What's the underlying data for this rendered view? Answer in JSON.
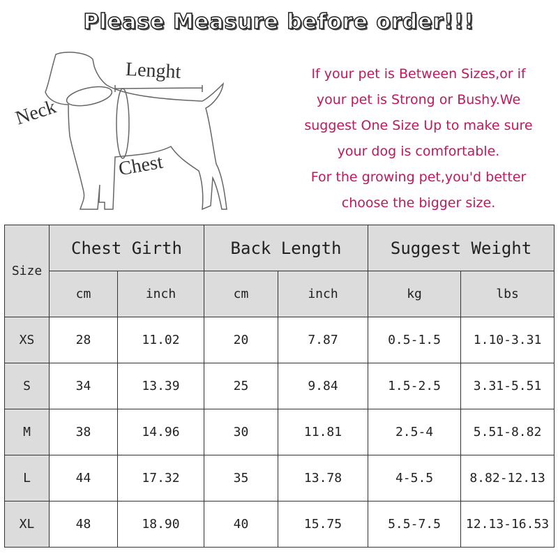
{
  "title": "Please Measure before order!!!",
  "diagram": {
    "labels": {
      "neck": "Neck",
      "length": "Lenght",
      "chest": "Chest"
    }
  },
  "note": [
    "If your pet is Between Sizes,or if",
    "your pet is Strong or Bushy.We",
    "suggest One Size Up to make sure",
    "your dog is comfortable.",
    "For the growing pet,you'd better",
    "choose the bigger size."
  ],
  "colors": {
    "note_text": "#c2185b",
    "header_bg": "#dcdcdc"
  },
  "table": {
    "size_header": "Size",
    "groups": [
      "Chest Girth",
      "Back Length",
      "Suggest Weight"
    ],
    "units": [
      "cm",
      "inch",
      "cm",
      "inch",
      "kg",
      "lbs"
    ],
    "rows": [
      [
        "XS",
        "28",
        "11.02",
        "20",
        "7.87",
        "0.5-1.5",
        "1.10-3.31"
      ],
      [
        "S",
        "34",
        "13.39",
        "25",
        "9.84",
        "1.5-2.5",
        "3.31-5.51"
      ],
      [
        "M",
        "38",
        "14.96",
        "30",
        "11.81",
        "2.5-4",
        "5.51-8.82"
      ],
      [
        "L",
        "44",
        "17.32",
        "35",
        "13.78",
        "4-5.5",
        "8.82-12.13"
      ],
      [
        "XL",
        "48",
        "18.90",
        "40",
        "15.75",
        "5.5-7.5",
        "12.13-16.53"
      ]
    ]
  }
}
